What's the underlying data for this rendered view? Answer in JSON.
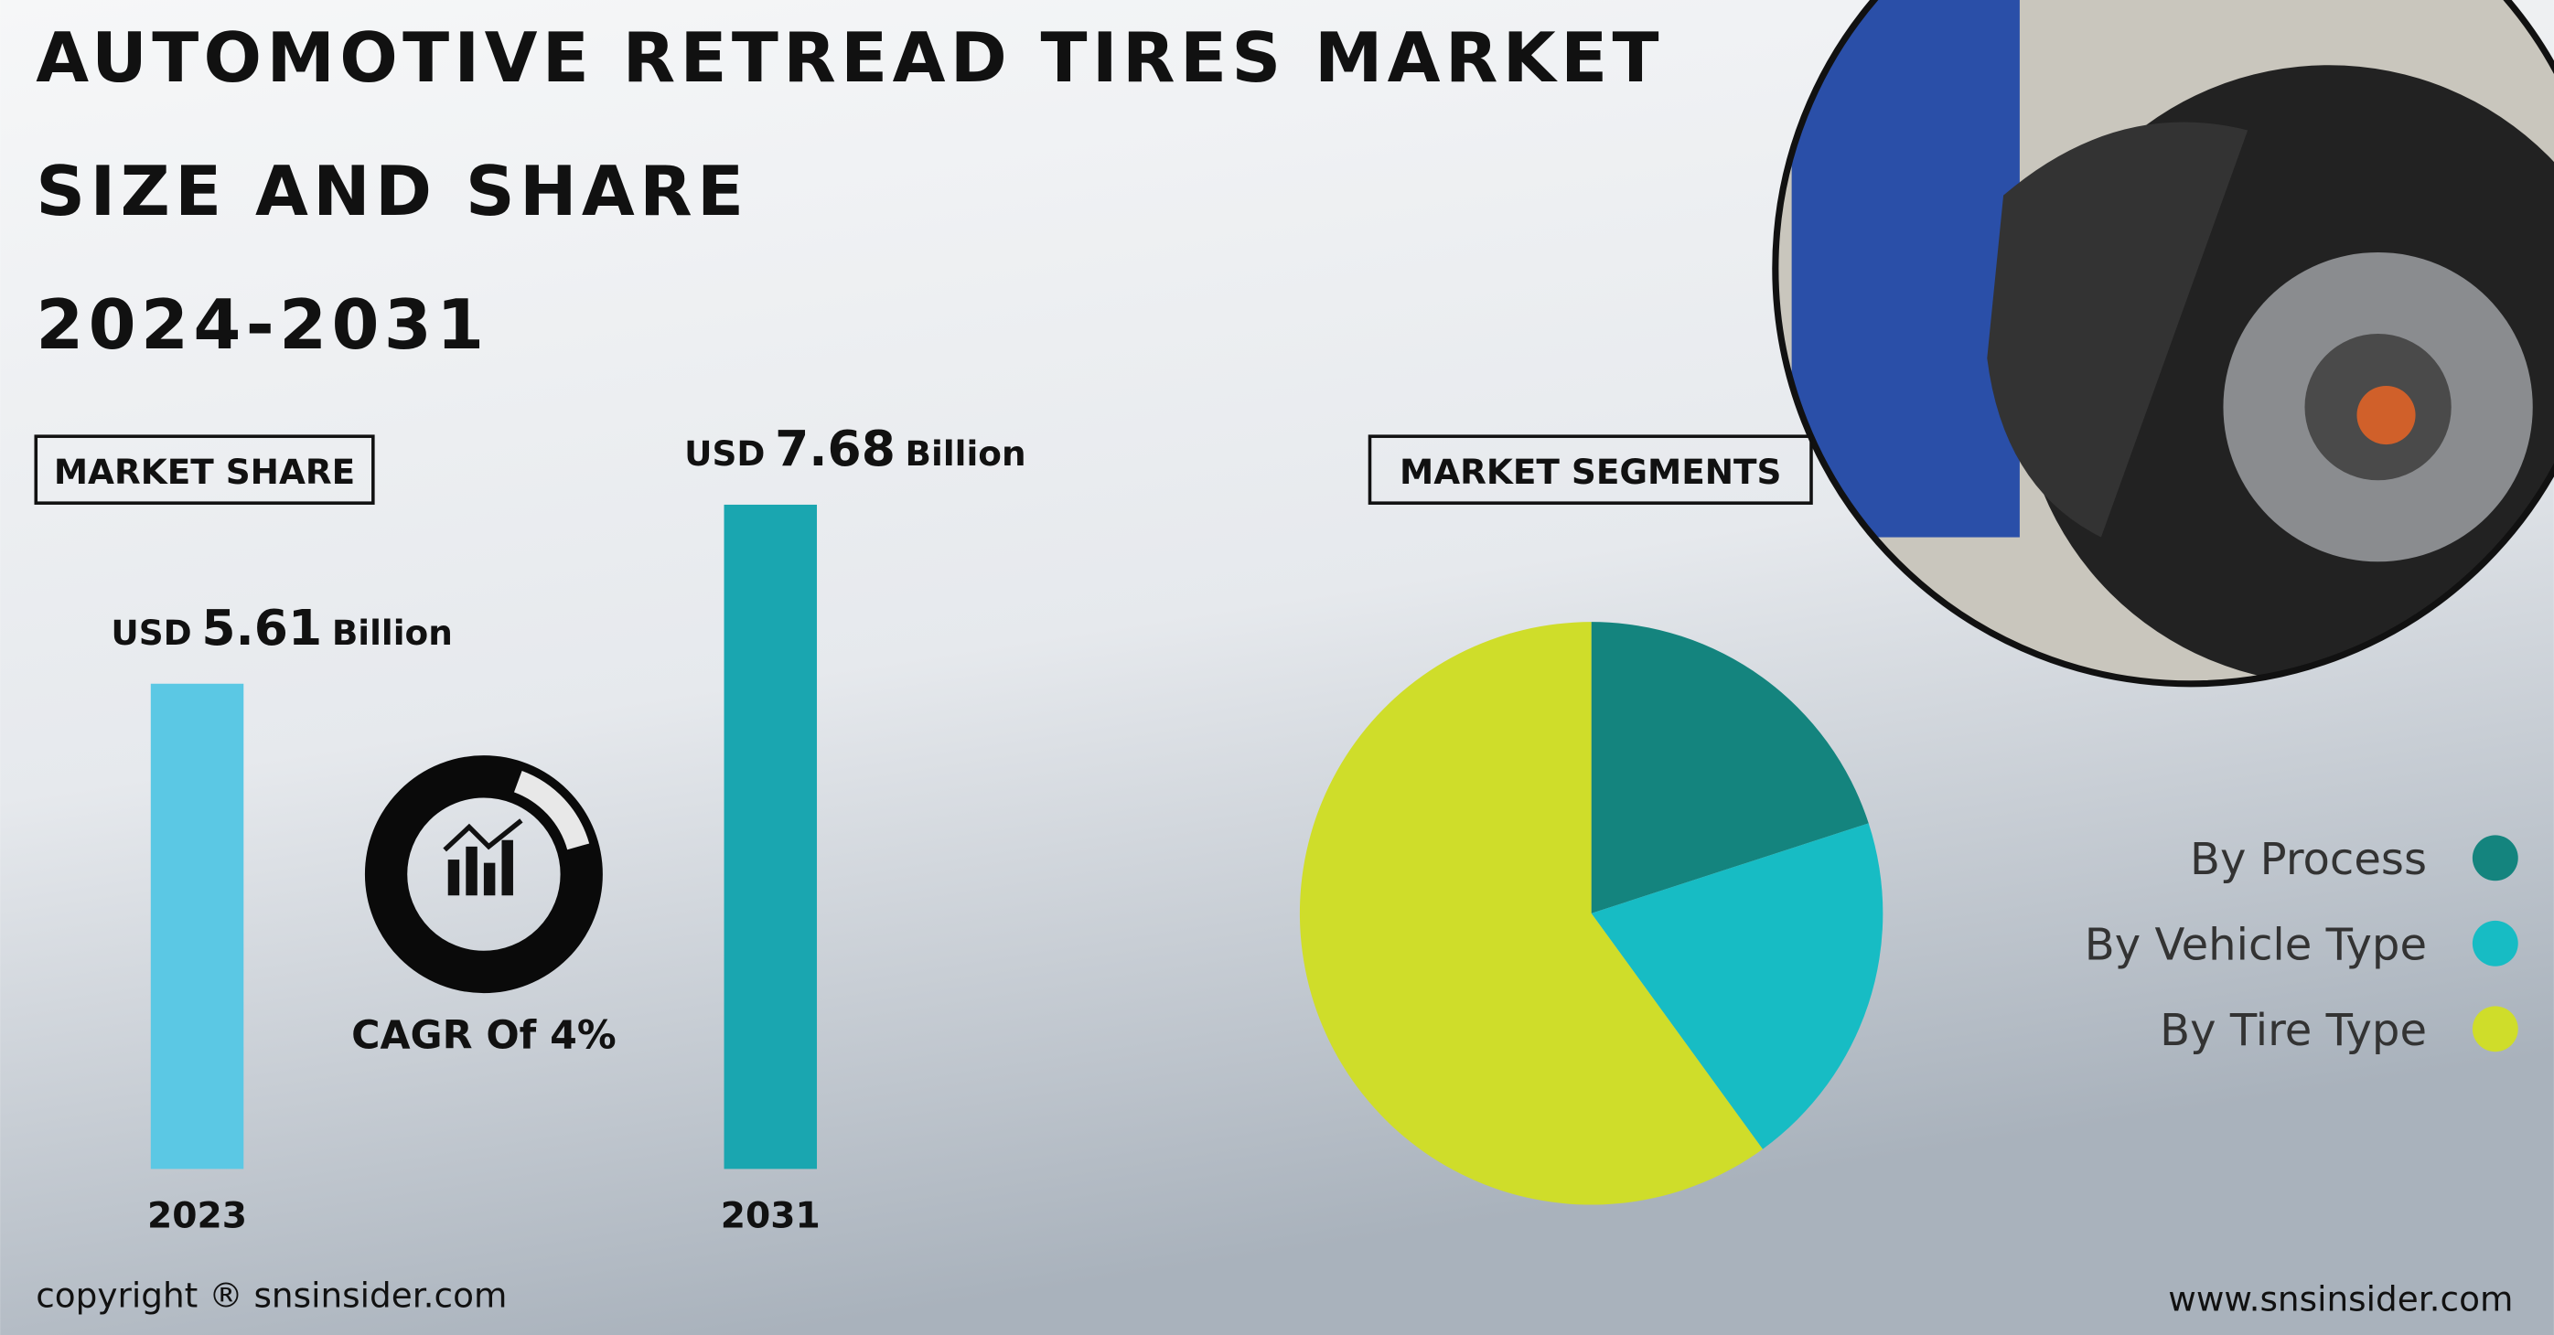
{
  "header": {
    "title": [
      "AUTOMOTIVE RETREAD TIRES MARKET",
      "SIZE AND SHARE",
      "2024-2031"
    ]
  },
  "chart_data": [
    {
      "type": "bar",
      "title": "MARKET SHARE",
      "categories": [
        "2023",
        "2031"
      ],
      "values": [
        5.61,
        7.68
      ],
      "colors": [
        "#5bc8e4",
        "#1aa6b0"
      ],
      "label_prefix": "USD",
      "label_suffix": "Billion",
      "annotation": "CAGR Of 4%"
    },
    {
      "type": "pie",
      "title": "MARKET SEGMENTS",
      "categories": [
        "By Process",
        "By Vehicle Type",
        "By Tire Type"
      ],
      "values": [
        20,
        20,
        60
      ],
      "colors": [
        "#14847e",
        "#17bcc4",
        "#cfdd2a"
      ]
    }
  ],
  "footer": {
    "copyright": "copyright ® snsinsider.com",
    "website": "www.snsinsider.com"
  }
}
